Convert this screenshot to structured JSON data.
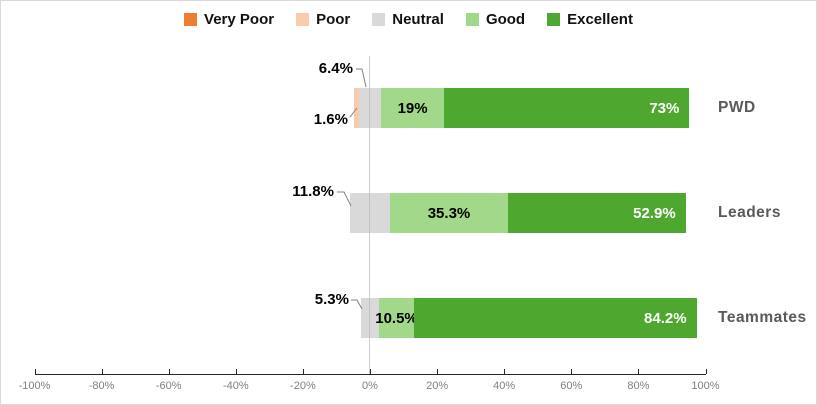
{
  "chart_data": {
    "type": "bar",
    "orientation": "horizontal",
    "subtype": "diverging-stacked-likert",
    "title": "",
    "neutral_split_across_zero": true,
    "categories": [
      "PWD",
      "Leaders",
      "Teammates"
    ],
    "series": [
      {
        "name": "Very Poor",
        "color": "#ED7D31",
        "values": [
          0,
          0,
          0
        ]
      },
      {
        "name": "Poor",
        "color": "#F8CBAD",
        "values": [
          1.6,
          0,
          0
        ]
      },
      {
        "name": "Neutral",
        "color": "#D9D9D9",
        "values": [
          6.4,
          11.8,
          5.3
        ]
      },
      {
        "name": "Good",
        "color": "#A2D88A",
        "values": [
          19,
          35.3,
          10.5
        ]
      },
      {
        "name": "Excellent",
        "color": "#4EA72E",
        "values": [
          73,
          52.9,
          84.2
        ]
      }
    ],
    "displayed_labels": {
      "PWD": {
        "Poor": "1.6%",
        "Neutral": "6.4%",
        "Good": "19%",
        "Excellent": "73%"
      },
      "Leaders": {
        "Neutral": "11.8%",
        "Good": "35.3%",
        "Excellent": "52.9%"
      },
      "Teammates": {
        "Neutral": "5.3%",
        "Good": "10.5%",
        "Excellent": "84.2%"
      }
    },
    "legend": {
      "position": "top",
      "entries": [
        "Very Poor",
        "Poor",
        "Neutral",
        "Good",
        "Excellent"
      ]
    },
    "x_axis": {
      "min": -100,
      "max": 100,
      "tick_step": 20,
      "tick_labels": [
        "-100%",
        "-80%",
        "-60%",
        "-40%",
        "-20%",
        "0%",
        "20%",
        "40%",
        "60%",
        "80%",
        "100%"
      ]
    },
    "style_colors": {
      "axis_line": "#262626",
      "axis_tick_label": "#7F7F7F",
      "zero_gridline": "#CDCDCD",
      "category_label": "#595959",
      "leader_line": "#808080",
      "excellent_value_text": "#FFFFFF",
      "inside_value_text": "#000000"
    }
  }
}
